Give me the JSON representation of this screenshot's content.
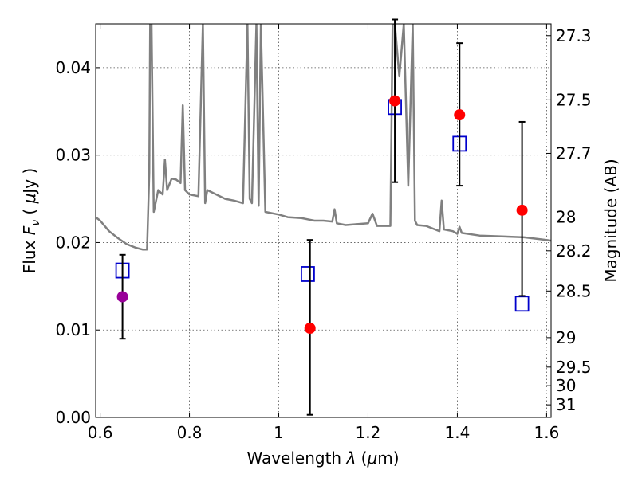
{
  "chart_data": {
    "type": "scatter",
    "xlabel": "Wavelength  λ (μm)",
    "ylabel": "Flux  Fν  ( μJy )",
    "y2label": "Magnitude (AB)",
    "xlim": [
      0.59,
      1.61
    ],
    "ylim": [
      0.0,
      0.045
    ],
    "grid": true,
    "x_ticks": [
      {
        "value": 0.6,
        "label": "0.6"
      },
      {
        "value": 0.8,
        "label": "0.8"
      },
      {
        "value": 1.0,
        "label": "1"
      },
      {
        "value": 1.2,
        "label": "1.2"
      },
      {
        "value": 1.4,
        "label": "1.4"
      },
      {
        "value": 1.6,
        "label": "1.6"
      }
    ],
    "y_ticks": [
      {
        "value": 0.0,
        "label": "0.00"
      },
      {
        "value": 0.01,
        "label": "0.01"
      },
      {
        "value": 0.02,
        "label": "0.02"
      },
      {
        "value": 0.03,
        "label": "0.03"
      },
      {
        "value": 0.04,
        "label": "0.04"
      }
    ],
    "y2_ticks": [
      {
        "value": 27.3,
        "label": "27.3"
      },
      {
        "value": 27.5,
        "label": "27.5"
      },
      {
        "value": 27.7,
        "label": "27.7"
      },
      {
        "value": 28.0,
        "label": "28"
      },
      {
        "value": 28.2,
        "label": "28.2"
      },
      {
        "value": 28.5,
        "label": "28.5"
      },
      {
        "value": 29.0,
        "label": "29"
      },
      {
        "value": 29.5,
        "label": "29.5"
      },
      {
        "value": 30.0,
        "label": "30"
      },
      {
        "value": 31.0,
        "label": "31"
      }
    ],
    "series": [
      {
        "kind": "model_spectrum",
        "color": "#808080",
        "x": [
          0.59,
          0.6,
          0.62,
          0.64,
          0.66,
          0.68,
          0.695,
          0.705,
          0.71,
          0.712,
          0.715,
          0.72,
          0.73,
          0.74,
          0.745,
          0.75,
          0.76,
          0.77,
          0.78,
          0.785,
          0.79,
          0.8,
          0.82,
          0.83,
          0.835,
          0.84,
          0.86,
          0.88,
          0.9,
          0.92,
          0.93,
          0.935,
          0.94,
          0.95,
          0.955,
          0.96,
          0.97,
          1.0,
          1.02,
          1.05,
          1.08,
          1.1,
          1.12,
          1.125,
          1.13,
          1.15,
          1.2,
          1.21,
          1.22,
          1.24,
          1.25,
          1.255,
          1.26,
          1.27,
          1.28,
          1.29,
          1.3,
          1.305,
          1.31,
          1.33,
          1.36,
          1.365,
          1.37,
          1.39,
          1.4,
          1.405,
          1.41,
          1.45,
          1.5,
          1.55,
          1.6,
          1.61
        ],
        "y": [
          0.0229,
          0.0225,
          0.0213,
          0.0205,
          0.0198,
          0.0194,
          0.0192,
          0.0192,
          0.028,
          0.045,
          0.045,
          0.0235,
          0.026,
          0.0255,
          0.0295,
          0.026,
          0.0273,
          0.0272,
          0.0268,
          0.0357,
          0.026,
          0.0255,
          0.0253,
          0.045,
          0.0245,
          0.026,
          0.0255,
          0.025,
          0.0248,
          0.0245,
          0.045,
          0.025,
          0.0245,
          0.045,
          0.0242,
          0.045,
          0.0235,
          0.0232,
          0.0229,
          0.0228,
          0.0225,
          0.0225,
          0.0224,
          0.0238,
          0.0222,
          0.022,
          0.0222,
          0.0233,
          0.0219,
          0.0219,
          0.0219,
          0.045,
          0.045,
          0.039,
          0.045,
          0.0265,
          0.045,
          0.0225,
          0.022,
          0.0219,
          0.0213,
          0.0248,
          0.0215,
          0.0213,
          0.021,
          0.0218,
          0.0211,
          0.0208,
          0.0207,
          0.0206,
          0.0203,
          0.0202
        ]
      },
      {
        "kind": "model_photometry",
        "marker": "open-square",
        "color": "#0000cc",
        "x": [
          0.65,
          1.065,
          1.26,
          1.405,
          1.545
        ],
        "y": [
          0.0168,
          0.0164,
          0.0355,
          0.0313,
          0.013
        ]
      },
      {
        "kind": "observed",
        "marker": "filled-circle",
        "color": "#ff0000",
        "x": [
          1.07,
          1.26,
          1.405,
          1.545
        ],
        "y": [
          0.0102,
          0.0362,
          0.0346,
          0.0237
        ],
        "yerr_low": [
          0.0099,
          0.0093,
          0.0081,
          0.0098
        ],
        "yerr_high": [
          0.0101,
          0.0093,
          0.0082,
          0.0101
        ]
      },
      {
        "kind": "observed",
        "marker": "filled-circle",
        "color": "#990099",
        "x": [
          0.65
        ],
        "y": [
          0.0138
        ],
        "yerr_low": [
          0.0048
        ],
        "yerr_high": [
          0.0048
        ]
      }
    ]
  }
}
